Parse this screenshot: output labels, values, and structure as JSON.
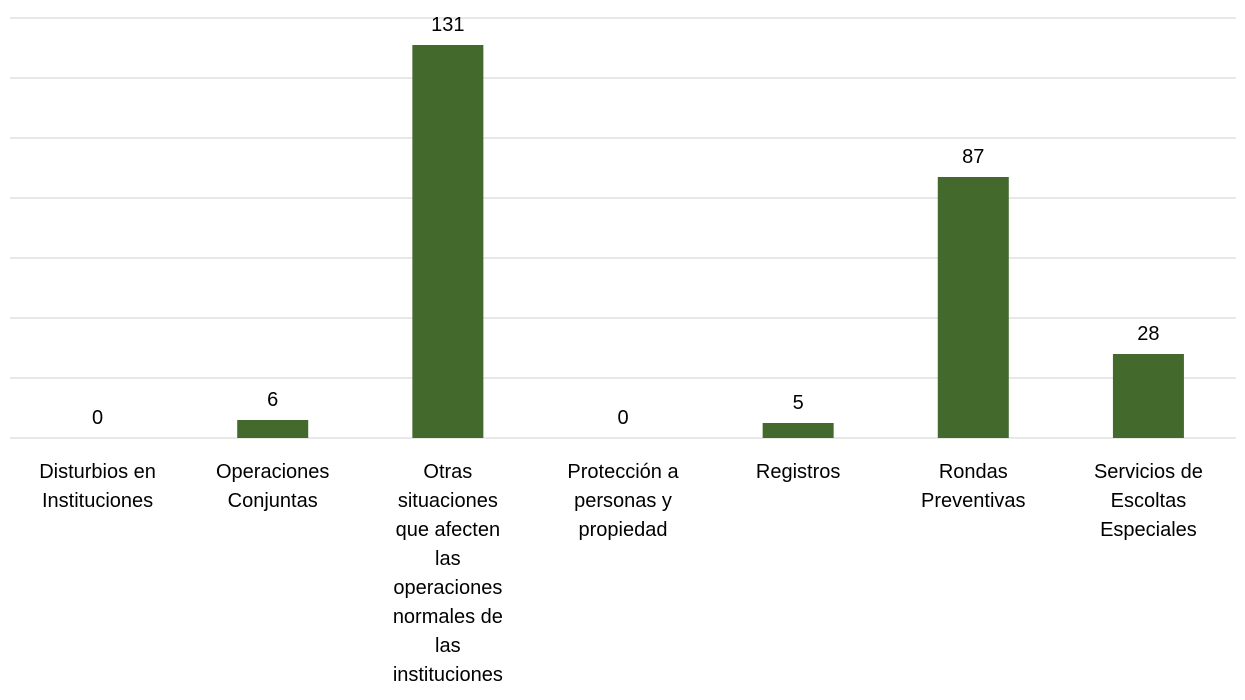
{
  "chart_data": {
    "type": "bar",
    "title": "",
    "xlabel": "",
    "ylabel": "",
    "ylim": [
      0,
      140
    ],
    "grid": true,
    "legend": "none",
    "bar_color": "#43692D",
    "categories": [
      [
        "Disturbios en",
        "Instituciones"
      ],
      [
        "Operaciones",
        "Conjuntas"
      ],
      [
        "Otras",
        "situaciones",
        "que afecten",
        "las",
        "operaciones",
        "normales de",
        "las",
        "instituciones"
      ],
      [
        "Protección a",
        "personas y",
        "propiedad"
      ],
      [
        "Registros"
      ],
      [
        "Rondas",
        "Preventivas"
      ],
      [
        "Servicios de",
        "Escoltas",
        "Especiales"
      ]
    ],
    "values": [
      0,
      6,
      131,
      0,
      5,
      87,
      28
    ],
    "data_labels": [
      "0",
      "6",
      "131",
      "0",
      "5",
      "87",
      "28"
    ]
  }
}
